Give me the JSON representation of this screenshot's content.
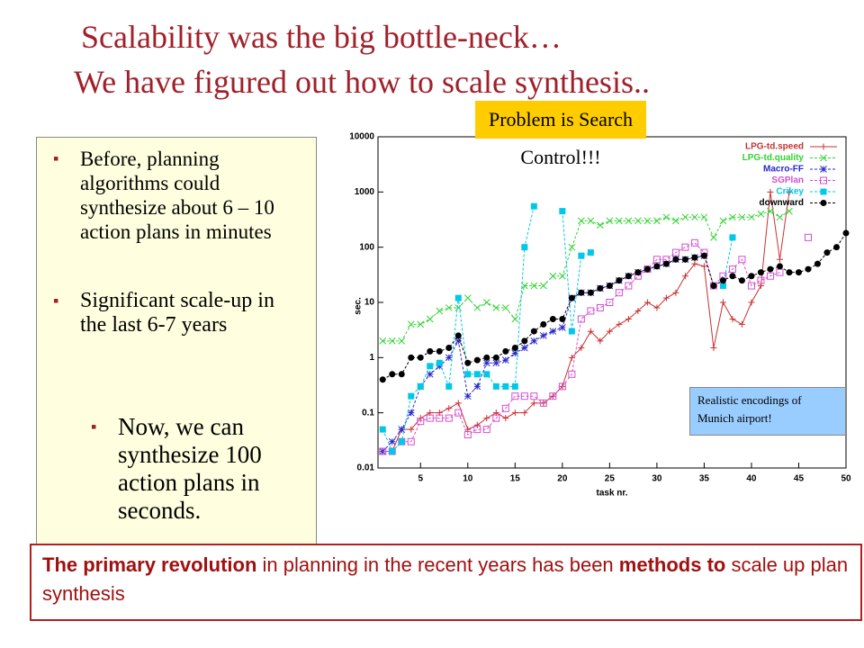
{
  "slide": {
    "title_line1": "Scalability was the big bottle-neck…",
    "title_line2": "We have figured out how to scale synthesis..",
    "callout": "Problem is Search Control!!!",
    "bullets": [
      "Before, planning algorithms could synthesize about 6 – 10 action plans in minutes",
      "Significant scale-up in the last 6-7 years",
      "Now, we can synthesize 100 action plans in seconds."
    ],
    "note": "Realistic encodings of Munich airport!",
    "footer": [
      "The primary revolution",
      " in planning in the recent years has been ",
      "methods to",
      " scale up plan synthesis"
    ]
  },
  "chart_data": {
    "type": "line",
    "ylabel": "sec.",
    "xlabel": "task nr.",
    "log_y": true,
    "xlim": [
      0.5,
      50
    ],
    "ylim": [
      0.01,
      10000
    ],
    "xticks": [
      5,
      10,
      15,
      20,
      25,
      30,
      35,
      40,
      45,
      50
    ],
    "yticks": [
      0.01,
      0.1,
      1,
      10,
      100,
      1000,
      10000
    ],
    "legend": "upper right",
    "x": [
      1,
      2,
      3,
      4,
      5,
      6,
      7,
      8,
      9,
      10,
      11,
      12,
      13,
      14,
      15,
      16,
      17,
      18,
      19,
      20,
      21,
      22,
      23,
      24,
      25,
      26,
      27,
      28,
      29,
      30,
      31,
      32,
      33,
      34,
      35,
      36,
      37,
      38,
      39,
      40,
      41,
      42,
      43,
      44,
      45,
      46,
      47,
      48,
      49,
      50
    ],
    "series": [
      {
        "name": "LPG-td.speed",
        "color": "#c83232",
        "marker": "plus",
        "values": [
          0.02,
          0.02,
          0.05,
          0.05,
          0.08,
          0.1,
          0.1,
          0.12,
          0.15,
          0.05,
          0.06,
          0.08,
          0.1,
          0.08,
          0.1,
          0.1,
          0.15,
          0.15,
          0.2,
          0.3,
          1,
          1.5,
          3,
          2,
          3,
          4,
          5,
          7,
          10,
          8,
          12,
          15,
          30,
          50,
          45,
          1.5,
          10,
          5,
          4,
          10,
          20,
          1000,
          60,
          1000,
          null,
          null,
          null,
          null,
          null,
          null
        ]
      },
      {
        "name": "LPG-td.quality",
        "color": "#32d232",
        "marker": "x",
        "values": [
          2,
          2,
          2,
          4,
          4,
          5,
          7,
          8,
          8,
          12,
          8,
          10,
          8,
          8,
          5,
          20,
          20,
          20,
          30,
          30,
          100,
          300,
          300,
          250,
          300,
          300,
          300,
          300,
          300,
          300,
          350,
          300,
          350,
          350,
          350,
          150,
          300,
          350,
          350,
          350,
          400,
          450,
          350,
          450,
          null,
          null,
          null,
          null,
          null,
          null
        ]
      },
      {
        "name": "Macro-FF",
        "color": "#2828c8",
        "marker": "star",
        "values": [
          0.02,
          0.03,
          0.05,
          0.1,
          0.3,
          0.5,
          0.7,
          1,
          2,
          0.2,
          0.3,
          0.8,
          0.8,
          0.9,
          1.2,
          1.5,
          2,
          2.5,
          3,
          3.5,
          12,
          15,
          15,
          18,
          20,
          25,
          30,
          35,
          40,
          45,
          50,
          60,
          60,
          65,
          70,
          null,
          null,
          null,
          null,
          null,
          null,
          null,
          null,
          null,
          null,
          null,
          null,
          null,
          null,
          null
        ]
      },
      {
        "name": "SGPlan",
        "color": "#d250d2",
        "marker": "square-open",
        "values": [
          0.02,
          0.02,
          0.03,
          0.03,
          0.07,
          0.08,
          0.08,
          0.08,
          0.1,
          0.04,
          0.05,
          0.05,
          0.08,
          0.12,
          0.2,
          0.2,
          0.2,
          0.15,
          0.2,
          0.3,
          0.5,
          5,
          7,
          8,
          10,
          15,
          20,
          30,
          40,
          60,
          60,
          80,
          100,
          120,
          80,
          20,
          30,
          40,
          60,
          20,
          25,
          30,
          35,
          null,
          null,
          150,
          null,
          null,
          null,
          null
        ]
      },
      {
        "name": "Crikey",
        "color": "#00c8e6",
        "marker": "square",
        "values": [
          0.05,
          0.02,
          0.03,
          0.2,
          0.3,
          0.7,
          0.8,
          0.3,
          12,
          0.5,
          0.5,
          0.5,
          0.3,
          0.3,
          0.3,
          100,
          550,
          null,
          null,
          450,
          3,
          70,
          80,
          null,
          null,
          null,
          null,
          null,
          null,
          null,
          null,
          null,
          null,
          null,
          null,
          null,
          20,
          150,
          null,
          null,
          null,
          null,
          null,
          null,
          null,
          null,
          null,
          null,
          null,
          null
        ]
      },
      {
        "name": "downward",
        "color": "#000000",
        "marker": "circle",
        "values": [
          0.4,
          0.5,
          0.5,
          1,
          1,
          1.3,
          1.3,
          1.5,
          2.5,
          0.8,
          0.9,
          1,
          1,
          1.3,
          1.5,
          2,
          3,
          4,
          5,
          5,
          12,
          15,
          15,
          18,
          20,
          25,
          30,
          35,
          40,
          45,
          50,
          60,
          60,
          65,
          70,
          20,
          25,
          30,
          25,
          30,
          35,
          40,
          45,
          35,
          35,
          40,
          50,
          80,
          100,
          180
        ]
      }
    ]
  }
}
